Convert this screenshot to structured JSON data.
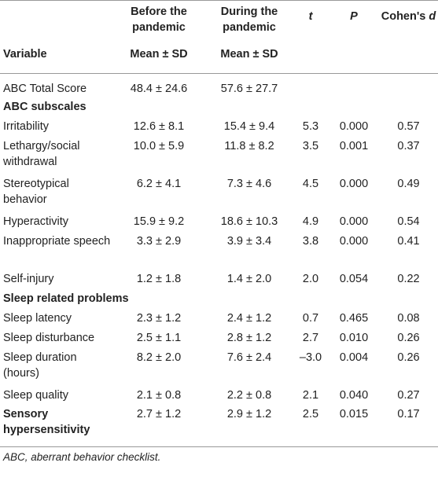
{
  "table": {
    "headers": {
      "variable": "Variable",
      "before_line1": "Before the",
      "before_line2": "pandemic",
      "before_line3": "Mean ± SD",
      "during_line1": "During the",
      "during_line2": "pandemic",
      "during_line3": "Mean ± SD",
      "t": "t",
      "p": "P",
      "cohens_prefix": "Cohen's ",
      "cohens_d": "d"
    },
    "rows": [
      {
        "name": "ABC Total Score",
        "before": "48.4 ± 24.6",
        "during": "57.6 ± 27.7",
        "t": "",
        "p": "",
        "d": ""
      },
      {
        "name": "ABC subscales",
        "section": true
      },
      {
        "name": "Irritability",
        "before": "12.6 ± 8.1",
        "during": "15.4 ± 9.4",
        "t": "5.3",
        "p": "0.000",
        "d": "0.57"
      },
      {
        "name": "Lethargy/social withdrawal",
        "before": "10.0 ± 5.9",
        "during": "11.8 ± 8.2",
        "t": "3.5",
        "p": "0.001",
        "d": "0.37"
      },
      {
        "name": "Stereotypical behavior",
        "before": "6.2 ± 4.1",
        "during": "7.3 ± 4.6",
        "t": "4.5",
        "p": "0.000",
        "d": "0.49"
      },
      {
        "name": "Hyperactivity",
        "before": "15.9 ± 9.2",
        "during": "18.6 ± 10.3",
        "t": "4.9",
        "p": "0.000",
        "d": "0.54"
      },
      {
        "name": "Inappropriate speech",
        "before": "3.3 ± 2.9",
        "during": "3.9 ± 3.4",
        "t": "3.8",
        "p": "0.000",
        "d": "0.41"
      },
      {
        "name": "Self-injury",
        "before": "1.2 ± 1.8",
        "during": "1.4 ± 2.0",
        "t": "2.0",
        "p": "0.054",
        "d": "0.22"
      },
      {
        "name": "Sleep related problems",
        "section": true
      },
      {
        "name": "Sleep latency",
        "before": "2.3 ± 1.2",
        "during": "2.4 ± 1.2",
        "t": "0.7",
        "p": "0.465",
        "d": "0.08"
      },
      {
        "name": "Sleep disturbance",
        "before": "2.5 ± 1.1",
        "during": "2.8 ± 1.2",
        "t": "2.7",
        "p": "0.010",
        "d": "0.26"
      },
      {
        "name": "Sleep duration (hours)",
        "before": "8.2 ± 2.0",
        "during": "7.6 ± 2.4",
        "t": "–3.0",
        "p": "0.004",
        "d": "0.26"
      },
      {
        "name": "Sleep quality",
        "before": "2.1 ± 0.8",
        "during": "2.2 ± 0.8",
        "t": "2.1",
        "p": "0.040",
        "d": "0.27"
      },
      {
        "name": "Sensory hypersensitivity",
        "before": "2.7 ± 1.2",
        "during": "2.9 ± 1.2",
        "t": "2.5",
        "p": "0.015",
        "d": "0.17",
        "bold_name": true
      }
    ]
  },
  "footnote": "ABC, aberrant behavior checklist."
}
